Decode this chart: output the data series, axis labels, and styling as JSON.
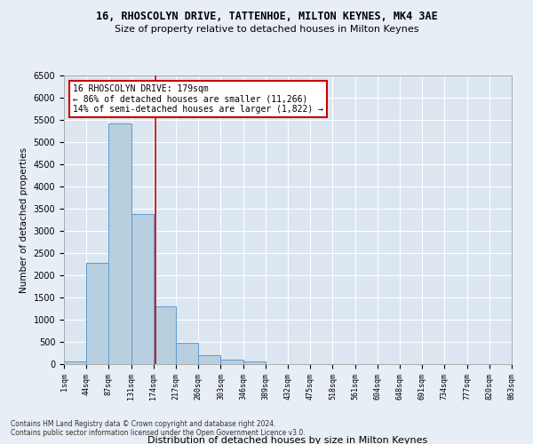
{
  "title1": "16, RHOSCOLYN DRIVE, TATTENHOE, MILTON KEYNES, MK4 3AE",
  "title2": "Size of property relative to detached houses in Milton Keynes",
  "xlabel": "Distribution of detached houses by size in Milton Keynes",
  "ylabel": "Number of detached properties",
  "footnote1": "Contains HM Land Registry data © Crown copyright and database right 2024.",
  "footnote2": "Contains public sector information licensed under the Open Government Licence v3.0.",
  "bar_values": [
    70,
    2280,
    5420,
    3380,
    1310,
    490,
    200,
    100,
    60,
    0,
    0,
    0,
    0,
    0,
    0,
    0,
    0,
    0,
    0,
    0
  ],
  "bin_labels": [
    "1sqm",
    "44sqm",
    "87sqm",
    "131sqm",
    "174sqm",
    "217sqm",
    "260sqm",
    "303sqm",
    "346sqm",
    "389sqm",
    "432sqm",
    "475sqm",
    "518sqm",
    "561sqm",
    "604sqm",
    "648sqm",
    "691sqm",
    "734sqm",
    "777sqm",
    "820sqm",
    "863sqm"
  ],
  "bar_color": "#b8cfe0",
  "bar_edge_color": "#5b9bd5",
  "bg_color": "#dce6f0",
  "grid_color": "#ffffff",
  "fig_color": "#e8eef5",
  "vline_x": 4.08,
  "vline_color": "#cc0000",
  "annotation_title": "16 RHOSCOLYN DRIVE: 179sqm",
  "annotation_line1": "← 86% of detached houses are smaller (11,266)",
  "annotation_line2": "14% of semi-detached houses are larger (1,822) →",
  "annotation_box_color": "#ffffff",
  "annotation_box_edge": "#cc0000",
  "ylim": [
    0,
    6500
  ],
  "yticks": [
    0,
    500,
    1000,
    1500,
    2000,
    2500,
    3000,
    3500,
    4000,
    4500,
    5000,
    5500,
    6000,
    6500
  ]
}
